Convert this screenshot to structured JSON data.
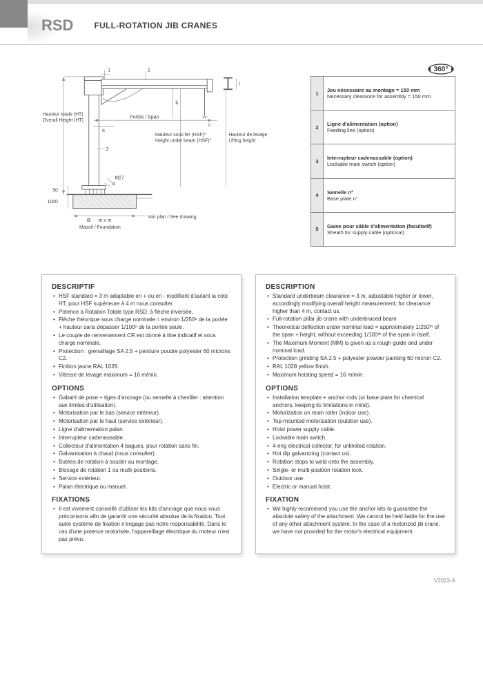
{
  "header": {
    "brand": "RSD",
    "title": "FULL-ROTATION JIB CRANES"
  },
  "badge": {
    "text": "360°"
  },
  "diagram": {
    "labels": {
      "ht_fr": "Hauteur totale (HT)",
      "ht_en": "Overall Height (HT)",
      "span_fr": "Portée / Span",
      "hsf_fr": "Hauteur sous fer (HSF)*",
      "hsf_en": "Height under beam (HSF)*",
      "lift_fr": "Hauteur de levage",
      "lift_en": "Lifting height",
      "massif_fr": "Massif / Foundation",
      "see_drawing": "Voir plan / See drawing",
      "m27": "M27",
      "d50": "50",
      "d1000": "1000",
      "mxm": "m x m",
      "diam": "Ø",
      "a": "a",
      "b": "b",
      "c": "c",
      "I": "I",
      "n1": "1",
      "n2": "2",
      "n3": "3",
      "n4": "4"
    },
    "colors": {
      "stroke": "#666",
      "thin": "#999",
      "fill": "#f5f5f5",
      "hatch": "#888"
    }
  },
  "legend": [
    {
      "n": "1",
      "fr": "Jeu nécessaire au montage = 150 mm",
      "en": "Necessary clearance for assembly = 150 mm"
    },
    {
      "n": "2",
      "fr": "Ligne d'alimentation (option)",
      "en": "Feeding line (option)"
    },
    {
      "n": "3",
      "fr": "Interrupteur cadenassable (option)",
      "en": "Lockable main switch (option)"
    },
    {
      "n": "4",
      "fr": "Semelle n°",
      "en": "Base plate n°"
    },
    {
      "n": "5",
      "fr": "Gaine pour câble d'alimentation (facultatif)",
      "en": "Sheath for supply cable (optional)"
    }
  ],
  "left": {
    "h1": "DESCRIPTIF",
    "desc": [
      "HSF standard = 3 m adaptable en + ou en - modifiant d'autant la cote HT, pour HSF supérieure à 4 m nous consulter.",
      "Potence à Rotation Totale type RSD, à flèche inversée.",
      "Flèche théorique sous charge nominale ≈ environ 1/250ᵉ de la portée + hauteur sans dépasser 1/100ᵉ de la portée seule.",
      "Le couple de renversement CR est donné à titre indicatif et sous charge nominale.",
      "Protection : grenaillage SA 2.5 + peinture poudre polyester 60 microns C2.",
      "Finition jaune RAL 1028.",
      "Vitesse de levage maximum = 16 m/min."
    ],
    "h2": "OPTIONS",
    "opts": [
      "Gabarit de pose + tiges d'ancrage (ou semelle à cheviller : attention aux limites d'utilisation).",
      "Motorisation par le bas (service intérieur).",
      "Motorisation par le haut (service extérieur).",
      "Ligne d'alimentation palan.",
      "Interrupteur cadenassable.",
      "Collecteur d'alimentation 4 bagues, pour rotation sans fin.",
      "Galvanisation à chaud (nous consulter).",
      "Butées de rotation à souder au montage.",
      "Blocage de rotation 1 ou multi-positions.",
      "Service extérieur.",
      "Palan électrique ou manuel."
    ],
    "h3": "FIXATIONS",
    "fix": [
      "Il est vivement conseillé d'utiliser les kits d'ancrage que nous vous préconisons afin de garantir une sécurité absolue de la fixation. Tout autre système de fixation n'engage pas notre responsabilité. Dans le cas d'une potence motorisée, l'appareillage électrique du moteur n'est pas prévu."
    ]
  },
  "right": {
    "h1": "DESCRIPTION",
    "desc": [
      "Standard underbeam clearance = 3 m, adjustable higher or lower, accordingly modifying overall height measurement; for clearance higher than 4 m, contact us.",
      "Full-rotation pillar jib crane with underbraced beam",
      "Theoretical deflection under nominal load = approximately 1/250ᵗʰ of the span + height, without exceeding 1/100ᵗʰ of the span in itself.",
      "The Maximum Moment (MM) is given as a rough guide and under nominal load.",
      "Protection grinding SA 2.5 + polyester powder painting 60 micron C2.",
      "RAL 1028 yellow finish.",
      "Maximum hoisting speed = 16 m/min."
    ],
    "h2": "OPTIONS",
    "opts": [
      "Installation template + anchor rods (or base plate for chemical anchors, keeping its limitations in mind).",
      "Motorization on main roller (indoor use).",
      "Top-mounted motorization (outdoor use).",
      "Hoist power supply cable.",
      "Lockable main switch.",
      "4-ring electrical collector, for unlimited rotation.",
      "Hot dip galvanizing (contact us).",
      "Rotation stops to weld onto the assembly.",
      "Single- or multi-position rotation lock.",
      "Outdoor use.",
      "Electric or manual hoist."
    ],
    "h3": "FIXATION",
    "fix": [
      "We highly recommend you use the anchor kits to guarantee the absolute safety of the attachment. We cannot be held liable for the use of any other attachment system. In the case of a motorized jib crane, we have not provided for the motor's electrical equipment."
    ]
  },
  "footer": "V2023-A"
}
